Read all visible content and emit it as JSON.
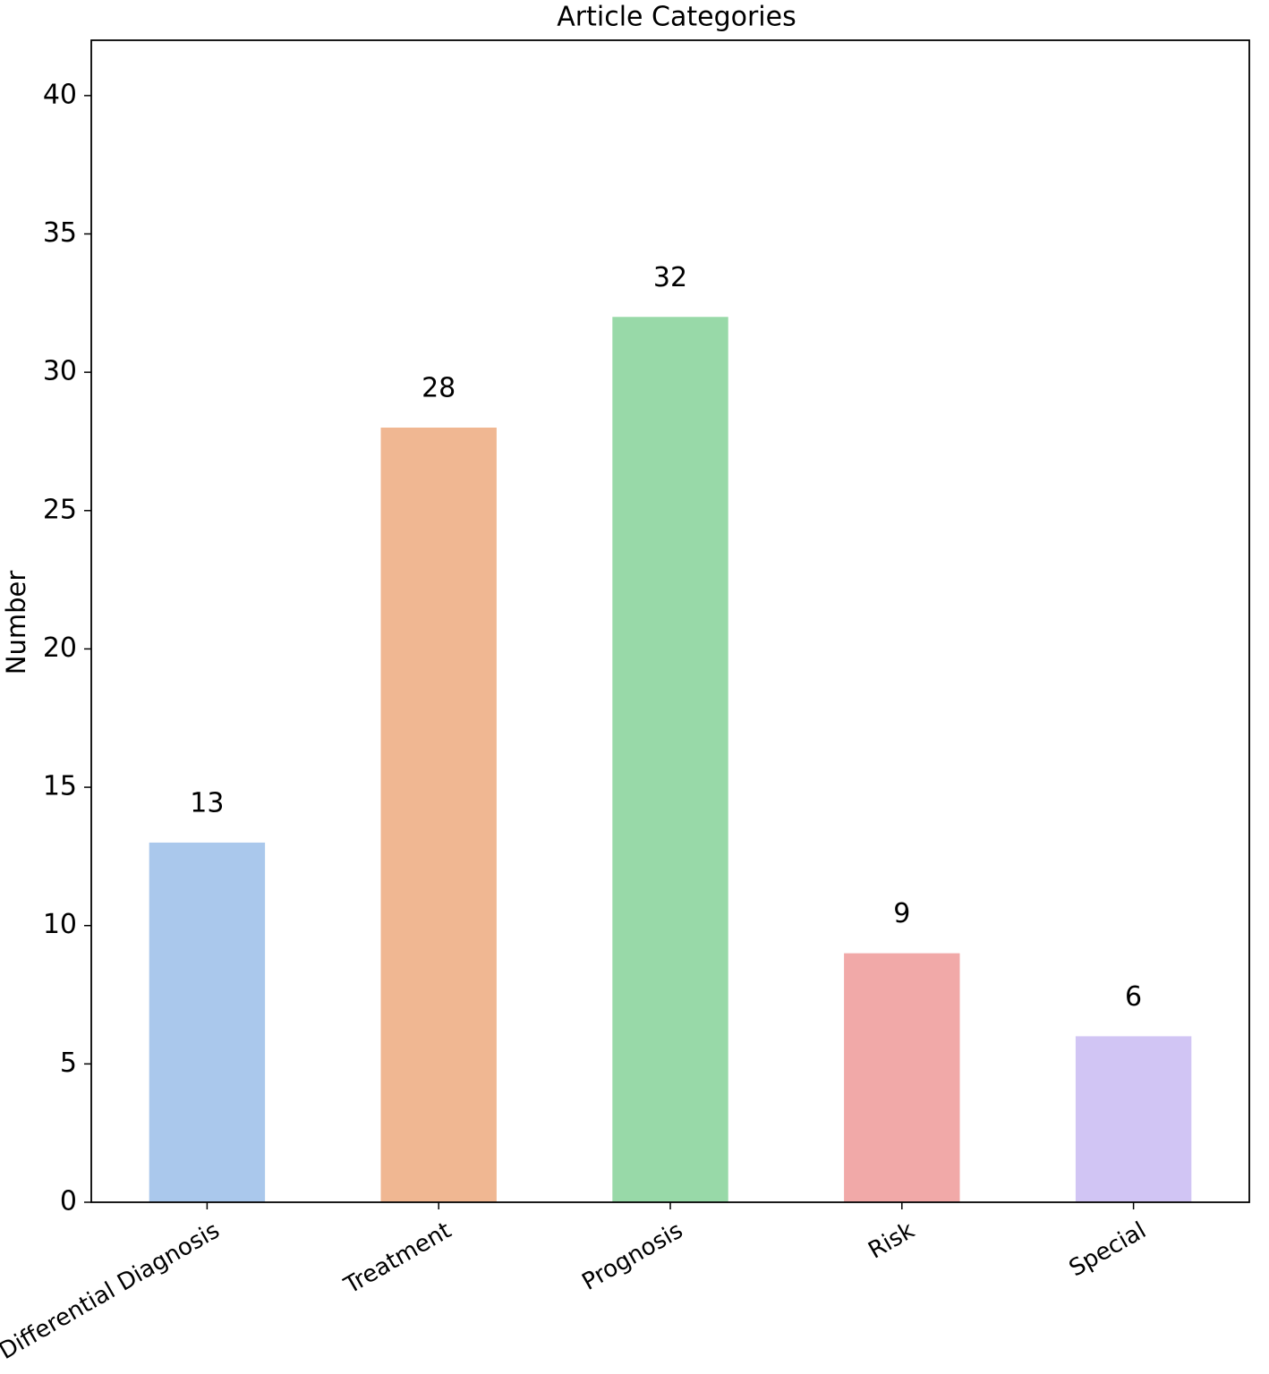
{
  "chart_data": {
    "type": "bar",
    "title": "Article Categories",
    "y_label": "Number",
    "categories": [
      "Differential Diagnosis",
      "Treatment",
      "Prognosis",
      "Risk",
      "Special"
    ],
    "values": [
      13,
      28,
      32,
      9,
      6
    ],
    "colors": [
      "#aac8ec",
      "#f0b792",
      "#98d9a8",
      "#f1a9a8",
      "#d1c5f4"
    ],
    "ylim": [
      0,
      42
    ],
    "yticks": [
      0,
      5,
      10,
      15,
      20,
      25,
      30,
      35,
      40
    ],
    "grid": false
  }
}
